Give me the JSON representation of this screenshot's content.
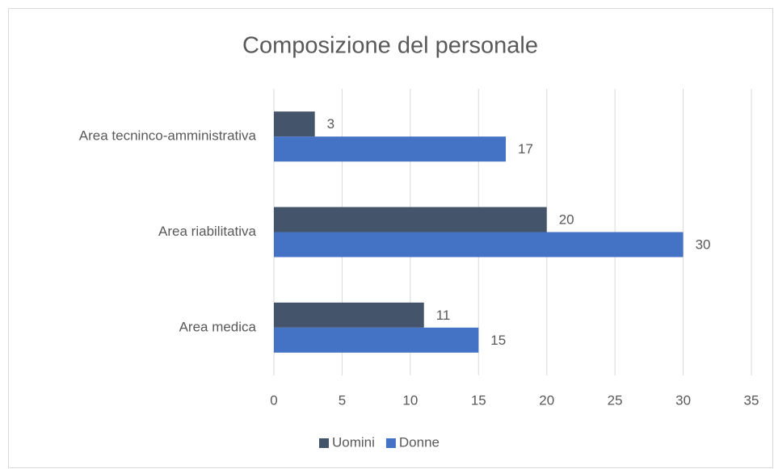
{
  "chart_data": {
    "type": "bar",
    "orientation": "horizontal",
    "title": "Composizione del personale",
    "categories": [
      "Area medica",
      "Area riabilitativa",
      "Area tecninco-amministrativa"
    ],
    "series": [
      {
        "name": "Uomini",
        "color": "#44546a",
        "values": [
          11,
          20,
          3
        ]
      },
      {
        "name": "Donne",
        "color": "#4472c4",
        "values": [
          15,
          30,
          17
        ]
      }
    ],
    "xlim": [
      0,
      35
    ],
    "xticks": [
      0,
      5,
      10,
      15,
      20,
      25,
      30,
      35
    ],
    "grid": true,
    "legend": "bottom",
    "data_labels": true
  }
}
